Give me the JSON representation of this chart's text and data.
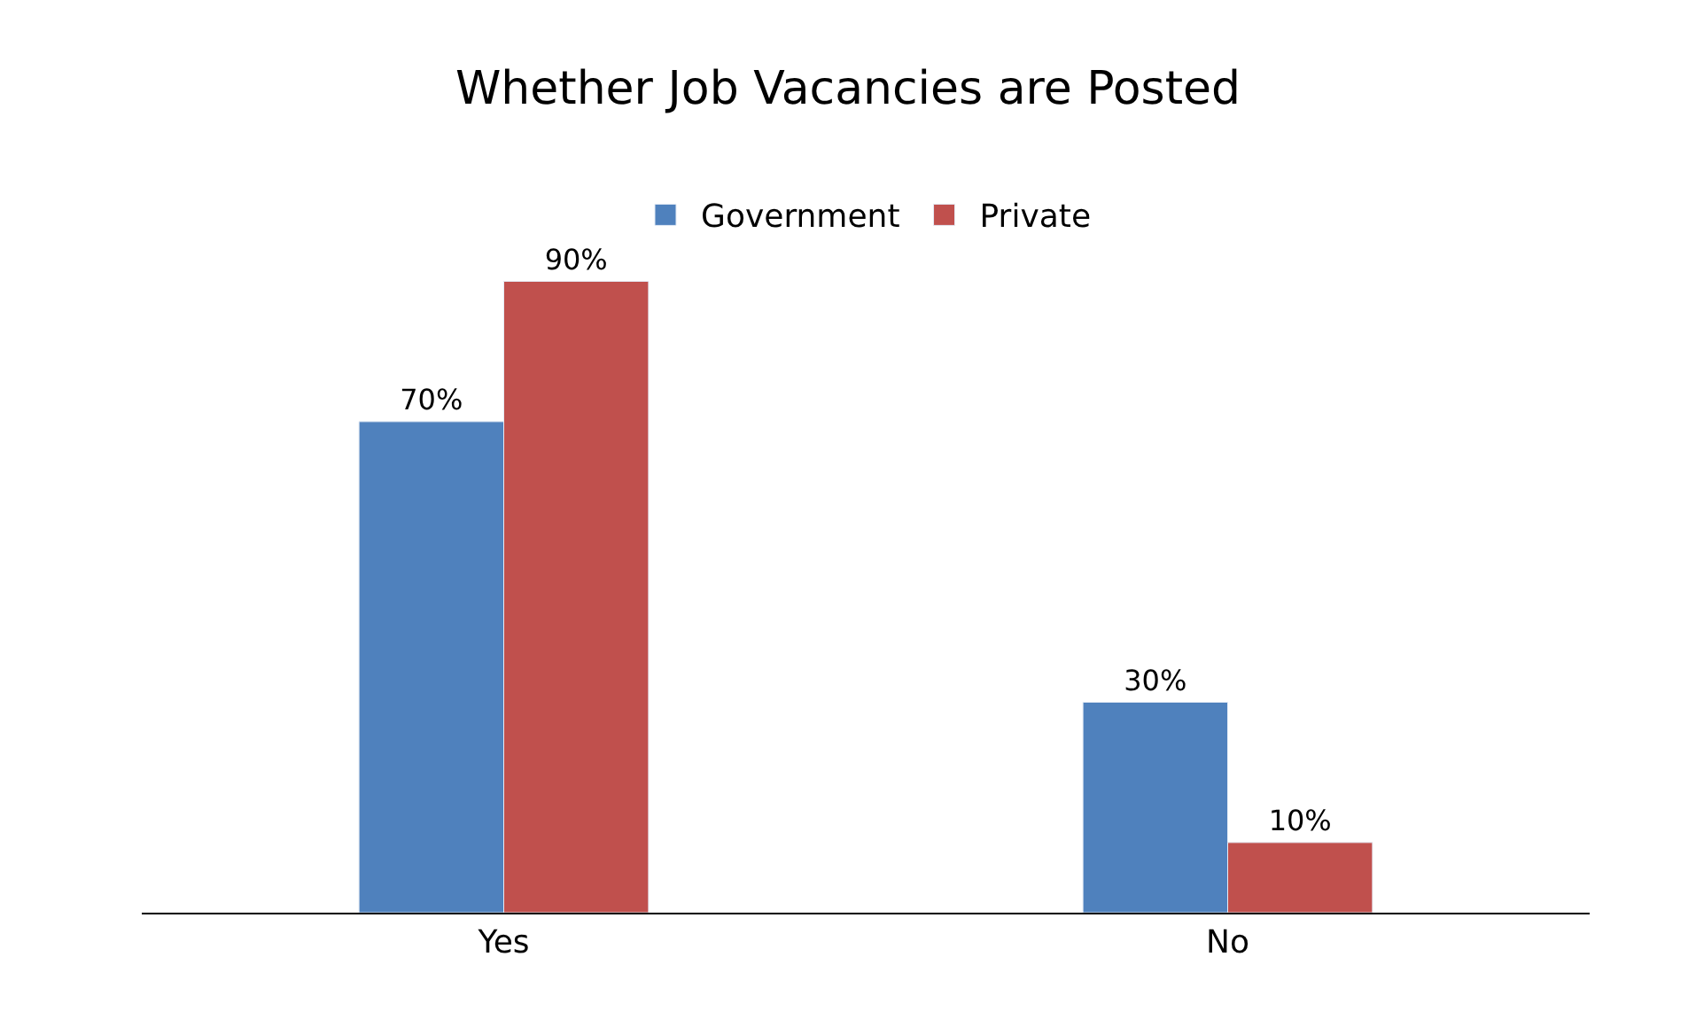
{
  "chart_data": {
    "type": "bar",
    "title": "Whether Job Vacancies are Posted",
    "categories": [
      "Yes",
      "No"
    ],
    "series": [
      {
        "name": "Government",
        "color": "#4f81bd",
        "values": [
          70,
          30
        ],
        "value_labels": [
          "70%",
          "30%"
        ]
      },
      {
        "name": "Private",
        "color": "#c0504d",
        "values": [
          90,
          10
        ],
        "value_labels": [
          "90%",
          "10%"
        ]
      }
    ],
    "legend": "top"
  }
}
